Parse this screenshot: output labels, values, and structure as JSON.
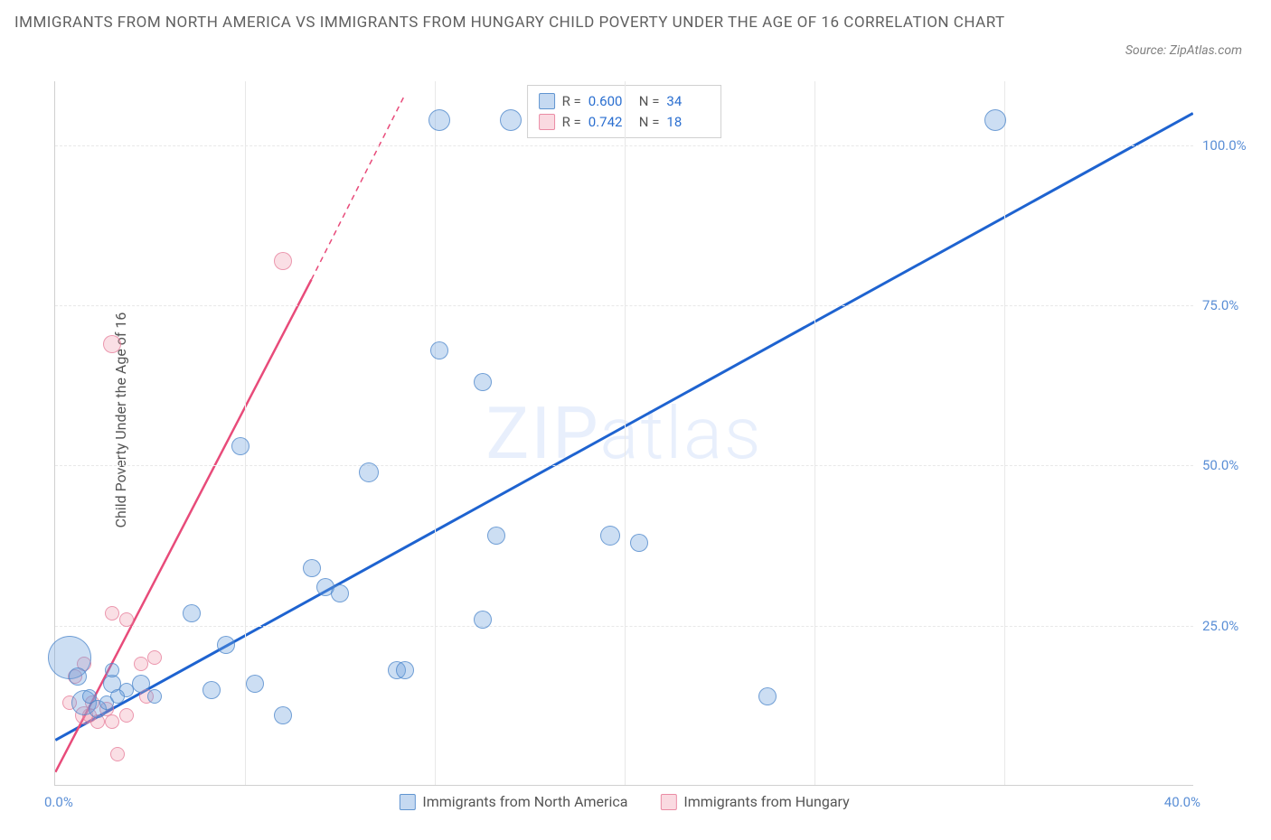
{
  "title": "IMMIGRANTS FROM NORTH AMERICA VS IMMIGRANTS FROM HUNGARY CHILD POVERTY UNDER THE AGE OF 16 CORRELATION CHART",
  "source": "Source: ZipAtlas.com",
  "y_axis_label": "Child Poverty Under the Age of 16",
  "watermark": {
    "prefix": "ZIP",
    "suffix": "atlas"
  },
  "chart": {
    "type": "scatter",
    "xlim": [
      0,
      40
    ],
    "ylim": [
      0,
      110
    ],
    "x_ticks": [
      0,
      6.67,
      13.33,
      20,
      26.67,
      33.33,
      40
    ],
    "x_tick_labels": [
      "0.0%",
      "",
      "",
      "",
      "",
      "",
      "40.0%"
    ],
    "y_ticks": [
      25,
      50,
      75,
      100
    ],
    "y_tick_labels": [
      "25.0%",
      "50.0%",
      "75.0%",
      "100.0%"
    ],
    "grid_color": "#e8e8e8",
    "border_color": "#d0d0d0",
    "background_color": "#ffffff"
  },
  "series": {
    "blue": {
      "label": "Immigrants from North America",
      "fill": "rgba(110,160,220,0.35)",
      "stroke": "rgba(70,130,200,0.7)",
      "trend_color": "#1e63d0",
      "trend_width": 3,
      "trend": {
        "x1": 0,
        "y1": 7,
        "x2": 40,
        "y2": 105
      },
      "points": [
        {
          "x": 0.5,
          "y": 20,
          "r": 24
        },
        {
          "x": 0.8,
          "y": 17,
          "r": 10
        },
        {
          "x": 1.0,
          "y": 13,
          "r": 14
        },
        {
          "x": 1.5,
          "y": 12,
          "r": 10
        },
        {
          "x": 1.8,
          "y": 13,
          "r": 8
        },
        {
          "x": 2.0,
          "y": 16,
          "r": 10
        },
        {
          "x": 1.2,
          "y": 14,
          "r": 8
        },
        {
          "x": 2.0,
          "y": 18,
          "r": 8
        },
        {
          "x": 2.5,
          "y": 15,
          "r": 8
        },
        {
          "x": 2.2,
          "y": 14,
          "r": 8
        },
        {
          "x": 3.0,
          "y": 16,
          "r": 10
        },
        {
          "x": 3.5,
          "y": 14,
          "r": 8
        },
        {
          "x": 4.8,
          "y": 27,
          "r": 10
        },
        {
          "x": 5.5,
          "y": 15,
          "r": 10
        },
        {
          "x": 6.0,
          "y": 22,
          "r": 10
        },
        {
          "x": 7.0,
          "y": 16,
          "r": 10
        },
        {
          "x": 6.5,
          "y": 53,
          "r": 10
        },
        {
          "x": 8.0,
          "y": 11,
          "r": 10
        },
        {
          "x": 9.0,
          "y": 34,
          "r": 10
        },
        {
          "x": 9.5,
          "y": 31,
          "r": 10
        },
        {
          "x": 10.0,
          "y": 30,
          "r": 10
        },
        {
          "x": 11.0,
          "y": 49,
          "r": 11
        },
        {
          "x": 12.0,
          "y": 18,
          "r": 10
        },
        {
          "x": 12.3,
          "y": 18,
          "r": 10
        },
        {
          "x": 13.5,
          "y": 68,
          "r": 10
        },
        {
          "x": 13.5,
          "y": 104,
          "r": 12
        },
        {
          "x": 15.0,
          "y": 63,
          "r": 10
        },
        {
          "x": 15.0,
          "y": 26,
          "r": 10
        },
        {
          "x": 15.5,
          "y": 39,
          "r": 10
        },
        {
          "x": 16.0,
          "y": 104,
          "r": 12
        },
        {
          "x": 19.5,
          "y": 39,
          "r": 11
        },
        {
          "x": 20.5,
          "y": 38,
          "r": 10
        },
        {
          "x": 25.0,
          "y": 14,
          "r": 10
        },
        {
          "x": 33.0,
          "y": 104,
          "r": 12
        }
      ]
    },
    "pink": {
      "label": "Immigrants from Hungary",
      "fill": "rgba(240,150,170,0.3)",
      "stroke": "rgba(230,120,150,0.7)",
      "trend_color": "#e84b7a",
      "trend_width": 2.5,
      "trend_solid": {
        "x1": 0,
        "y1": 2,
        "x2": 9,
        "y2": 79
      },
      "trend_dashed": {
        "x1": 9,
        "y1": 79,
        "x2": 12.3,
        "y2": 108
      },
      "points": [
        {
          "x": 0.5,
          "y": 13,
          "r": 8
        },
        {
          "x": 0.7,
          "y": 17,
          "r": 8
        },
        {
          "x": 1.0,
          "y": 11,
          "r": 10
        },
        {
          "x": 1.3,
          "y": 13,
          "r": 8
        },
        {
          "x": 1.2,
          "y": 11,
          "r": 8
        },
        {
          "x": 1.5,
          "y": 10,
          "r": 8
        },
        {
          "x": 1.0,
          "y": 19,
          "r": 8
        },
        {
          "x": 1.8,
          "y": 12,
          "r": 8
        },
        {
          "x": 2.0,
          "y": 10,
          "r": 8
        },
        {
          "x": 2.0,
          "y": 27,
          "r": 8
        },
        {
          "x": 2.5,
          "y": 26,
          "r": 8
        },
        {
          "x": 2.2,
          "y": 5,
          "r": 8
        },
        {
          "x": 3.0,
          "y": 19,
          "r": 8
        },
        {
          "x": 2.5,
          "y": 11,
          "r": 8
        },
        {
          "x": 3.2,
          "y": 14,
          "r": 8
        },
        {
          "x": 3.5,
          "y": 20,
          "r": 8
        },
        {
          "x": 2.0,
          "y": 69,
          "r": 10
        },
        {
          "x": 8.0,
          "y": 82,
          "r": 10
        }
      ]
    }
  },
  "legend_top": {
    "rows": [
      {
        "swatch": "blue",
        "r_label": "R =",
        "r_value": "0.600",
        "n_label": "N =",
        "n_value": "34"
      },
      {
        "swatch": "pink",
        "r_label": "R =",
        "r_value": "0.742",
        "n_label": "N =",
        "n_value": "18"
      }
    ]
  },
  "legend_bottom": [
    {
      "swatch": "blue",
      "label": "Immigrants from North America"
    },
    {
      "swatch": "pink",
      "label": "Immigrants from Hungary"
    }
  ]
}
